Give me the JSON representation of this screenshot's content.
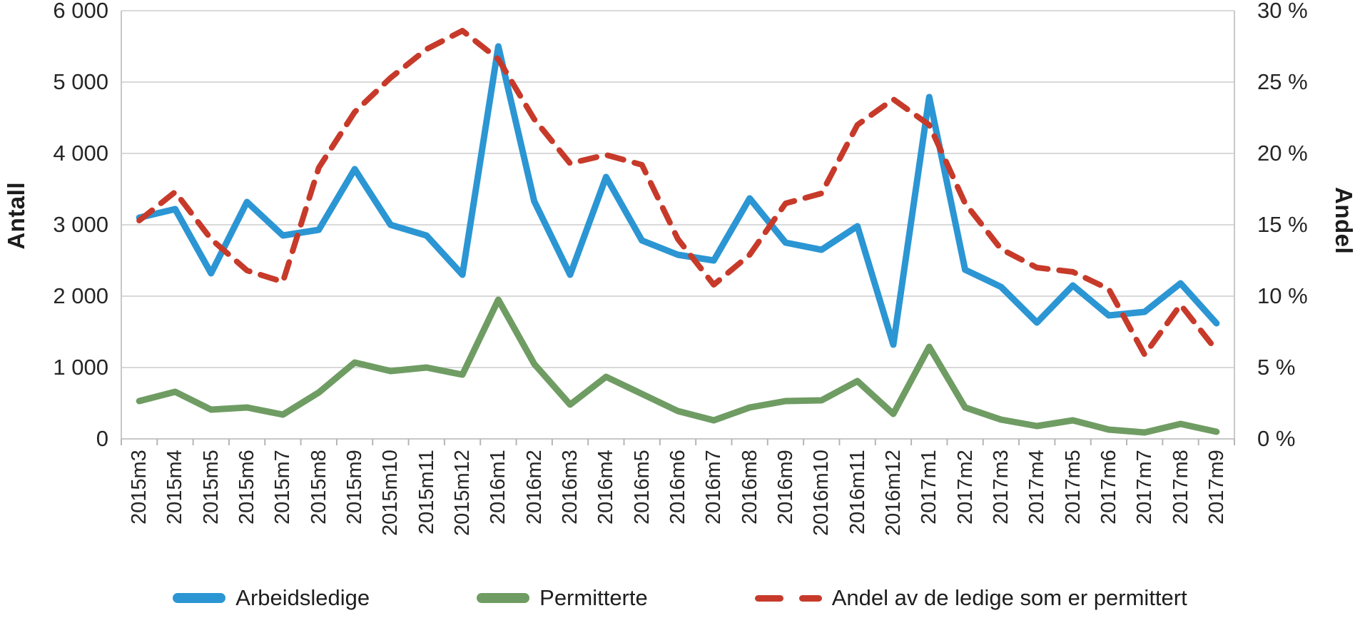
{
  "chart_data": {
    "type": "line",
    "title": "",
    "categories": [
      "2015m3",
      "2015m4",
      "2015m5",
      "2015m6",
      "2015m7",
      "2015m8",
      "2015m9",
      "2015m10",
      "2015m11",
      "2015m12",
      "2016m1",
      "2016m2",
      "2016m3",
      "2016m4",
      "2016m5",
      "2016m6",
      "2016m7",
      "2016m8",
      "2016m9",
      "2016m10",
      "2016m11",
      "2016m12",
      "2017m1",
      "2017m2",
      "2017m3",
      "2017m4",
      "2017m5",
      "2017m6",
      "2017m7",
      "2017m8",
      "2017m9"
    ],
    "series": [
      {
        "name": "Arbeidsledige",
        "axis": "left",
        "style": "solid",
        "color": "#2b96d3",
        "values": [
          3100,
          3220,
          2320,
          3320,
          2850,
          2930,
          3780,
          3000,
          2850,
          2300,
          5500,
          3330,
          2300,
          3670,
          2780,
          2580,
          2500,
          3370,
          2750,
          2650,
          2980,
          1320,
          4790,
          2370,
          2130,
          1630,
          2150,
          1730,
          1780,
          2180,
          1620
        ]
      },
      {
        "name": "Permitterte",
        "axis": "left",
        "style": "solid",
        "color": "#6f9c63",
        "values": [
          530,
          660,
          410,
          440,
          340,
          650,
          1070,
          950,
          1000,
          900,
          1950,
          1050,
          480,
          870,
          630,
          390,
          260,
          440,
          530,
          540,
          810,
          350,
          1290,
          440,
          270,
          180,
          260,
          130,
          90,
          210,
          100
        ]
      },
      {
        "name": "Andel av de ledige som er permittert",
        "axis": "right",
        "style": "dashed",
        "color": "#c73a2a",
        "values": [
          15.3,
          17.3,
          14.0,
          11.8,
          11.0,
          19.0,
          22.9,
          25.3,
          27.3,
          28.6,
          26.6,
          22.4,
          19.3,
          19.9,
          19.2,
          14.0,
          10.8,
          12.9,
          16.5,
          17.2,
          22.0,
          23.8,
          22.0,
          16.5,
          13.3,
          12.0,
          11.7,
          10.5,
          5.9,
          9.4,
          6.2
        ]
      }
    ],
    "left_axis": {
      "label": "Antall",
      "min": 0,
      "max": 6000,
      "tick_step": 1000,
      "tick_labels": [
        "0",
        "1 000",
        "2 000",
        "3 000",
        "4 000",
        "5 000",
        "6 000"
      ]
    },
    "right_axis": {
      "label": "Andel",
      "min": 0,
      "max": 30,
      "tick_step": 5,
      "tick_labels": [
        "0 %",
        "5 %",
        "10 %",
        "15 %",
        "20 %",
        "25 %",
        "30 %"
      ]
    },
    "grid": true,
    "legend_position": "bottom"
  },
  "colors": {
    "gridline": "#d9d9d9",
    "axis_line": "#c8c8c8",
    "tick_mark": "#b5b5b5",
    "text": "#262626"
  }
}
